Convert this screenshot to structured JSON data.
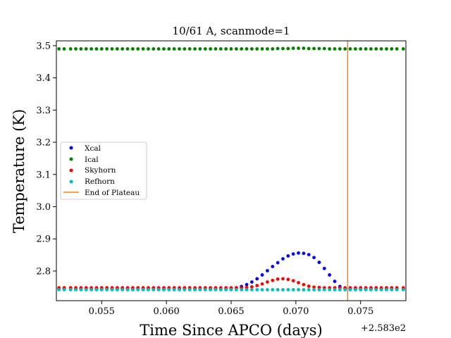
{
  "chart_data": {
    "type": "scatter",
    "title": "10/61 A, scanmode=1",
    "xlabel": "Time Since APCO (days)",
    "ylabel": "Temperature (K)",
    "x_offset_label": "+2.583e2",
    "xlim": [
      258.3515,
      258.3785
    ],
    "ylim": [
      2.708,
      3.515
    ],
    "xticks": [
      0.055,
      0.06,
      0.065,
      0.07,
      0.075
    ],
    "xtick_labels": [
      "0.055",
      "0.060",
      "0.065",
      "0.070",
      "0.075"
    ],
    "yticks": [
      2.8,
      2.9,
      3.0,
      3.1,
      3.2,
      3.3,
      3.4,
      3.5
    ],
    "ytick_labels": [
      "2.8",
      "2.9",
      "3.0",
      "3.1",
      "3.2",
      "3.3",
      "3.4",
      "3.5"
    ],
    "legend_position": "center-left",
    "series": [
      {
        "name": "Xcal",
        "color": "#0000ff",
        "x": [
          258.3517,
          258.3521,
          258.3526,
          258.353,
          258.3534,
          258.3538,
          258.3542,
          258.3546,
          258.355,
          258.3554,
          258.3558,
          258.3562,
          258.3566,
          258.357,
          258.3574,
          258.3578,
          258.3582,
          258.3586,
          258.359,
          258.3594,
          258.3598,
          258.3602,
          258.3606,
          258.361,
          258.3614,
          258.3618,
          258.3622,
          258.3626,
          258.363,
          258.3634,
          258.3638,
          258.3642,
          258.3646,
          258.365,
          258.3654,
          258.3658,
          258.3662,
          258.3666,
          258.367,
          258.3674,
          258.3678,
          258.3682,
          258.3686,
          258.369,
          258.3694,
          258.3698,
          258.3702,
          258.3706,
          258.371,
          258.3714,
          258.3718,
          258.3722,
          258.3726,
          258.373,
          258.3734,
          258.3738,
          258.3742,
          258.3746,
          258.375,
          258.3754,
          258.3758,
          258.3762,
          258.3766,
          258.377,
          258.3774,
          258.3778,
          258.3783
        ],
        "y": [
          2.745,
          2.745,
          2.745,
          2.745,
          2.745,
          2.745,
          2.745,
          2.745,
          2.745,
          2.745,
          2.745,
          2.745,
          2.745,
          2.745,
          2.745,
          2.745,
          2.745,
          2.745,
          2.745,
          2.745,
          2.745,
          2.745,
          2.745,
          2.745,
          2.745,
          2.745,
          2.745,
          2.745,
          2.745,
          2.745,
          2.745,
          2.745,
          2.745,
          2.746,
          2.748,
          2.752,
          2.758,
          2.766,
          2.776,
          2.788,
          2.801,
          2.814,
          2.826,
          2.838,
          2.847,
          2.853,
          2.856,
          2.855,
          2.851,
          2.842,
          2.827,
          2.808,
          2.788,
          2.768,
          2.752,
          2.746,
          2.745,
          2.745,
          2.745,
          2.745,
          2.745,
          2.745,
          2.745,
          2.745,
          2.745,
          2.745,
          2.745
        ]
      },
      {
        "name": "Ical",
        "color": "#008000",
        "x": [
          258.3517,
          258.3521,
          258.3526,
          258.353,
          258.3534,
          258.3538,
          258.3542,
          258.3546,
          258.355,
          258.3554,
          258.3558,
          258.3562,
          258.3566,
          258.357,
          258.3574,
          258.3578,
          258.3582,
          258.3586,
          258.359,
          258.3594,
          258.3598,
          258.3602,
          258.3606,
          258.361,
          258.3614,
          258.3618,
          258.3622,
          258.3626,
          258.363,
          258.3634,
          258.3638,
          258.3642,
          258.3646,
          258.365,
          258.3654,
          258.3658,
          258.3662,
          258.3666,
          258.367,
          258.3674,
          258.3678,
          258.3682,
          258.3686,
          258.369,
          258.3694,
          258.3698,
          258.3702,
          258.3706,
          258.371,
          258.3714,
          258.3718,
          258.3722,
          258.3726,
          258.373,
          258.3734,
          258.3738,
          258.3742,
          258.3746,
          258.375,
          258.3754,
          258.3758,
          258.3762,
          258.3766,
          258.377,
          258.3774,
          258.3778,
          258.3783
        ],
        "y": [
          3.49,
          3.49,
          3.49,
          3.49,
          3.49,
          3.49,
          3.49,
          3.49,
          3.49,
          3.49,
          3.49,
          3.49,
          3.49,
          3.49,
          3.49,
          3.49,
          3.49,
          3.49,
          3.49,
          3.49,
          3.49,
          3.49,
          3.49,
          3.49,
          3.49,
          3.49,
          3.49,
          3.49,
          3.49,
          3.49,
          3.49,
          3.49,
          3.49,
          3.49,
          3.49,
          3.49,
          3.49,
          3.49,
          3.49,
          3.49,
          3.49,
          3.49,
          3.491,
          3.491,
          3.491,
          3.492,
          3.492,
          3.492,
          3.491,
          3.491,
          3.491,
          3.491,
          3.49,
          3.49,
          3.49,
          3.49,
          3.49,
          3.49,
          3.49,
          3.49,
          3.49,
          3.49,
          3.49,
          3.49,
          3.49,
          3.49,
          3.49
        ]
      },
      {
        "name": "Skyhorn",
        "color": "#ff0000",
        "x": [
          258.3517,
          258.3521,
          258.3526,
          258.353,
          258.3534,
          258.3538,
          258.3542,
          258.3546,
          258.355,
          258.3554,
          258.3558,
          258.3562,
          258.3566,
          258.357,
          258.3574,
          258.3578,
          258.3582,
          258.3586,
          258.359,
          258.3594,
          258.3598,
          258.3602,
          258.3606,
          258.361,
          258.3614,
          258.3618,
          258.3622,
          258.3626,
          258.363,
          258.3634,
          258.3638,
          258.3642,
          258.3646,
          258.365,
          258.3654,
          258.3658,
          258.3662,
          258.3666,
          258.367,
          258.3674,
          258.3678,
          258.3682,
          258.3686,
          258.369,
          258.3694,
          258.3698,
          258.3702,
          258.3706,
          258.371,
          258.3714,
          258.3718,
          258.3722,
          258.3726,
          258.373,
          258.3734,
          258.3738,
          258.3742,
          258.3746,
          258.375,
          258.3754,
          258.3758,
          258.3762,
          258.3766,
          258.377,
          258.3774,
          258.3778,
          258.3783
        ],
        "y": [
          2.748,
          2.748,
          2.748,
          2.748,
          2.748,
          2.748,
          2.748,
          2.748,
          2.748,
          2.748,
          2.748,
          2.748,
          2.748,
          2.748,
          2.748,
          2.748,
          2.748,
          2.748,
          2.748,
          2.748,
          2.748,
          2.748,
          2.748,
          2.748,
          2.748,
          2.748,
          2.748,
          2.748,
          2.748,
          2.748,
          2.748,
          2.748,
          2.748,
          2.748,
          2.748,
          2.748,
          2.749,
          2.751,
          2.755,
          2.76,
          2.766,
          2.771,
          2.775,
          2.776,
          2.774,
          2.77,
          2.764,
          2.758,
          2.753,
          2.75,
          2.749,
          2.748,
          2.748,
          2.748,
          2.748,
          2.748,
          2.748,
          2.748,
          2.748,
          2.748,
          2.748,
          2.748,
          2.748,
          2.748,
          2.748,
          2.748,
          2.748
        ]
      },
      {
        "name": "Refhorn",
        "color": "#00bfbf",
        "x": [
          258.3517,
          258.3521,
          258.3526,
          258.353,
          258.3534,
          258.3538,
          258.3542,
          258.3546,
          258.355,
          258.3554,
          258.3558,
          258.3562,
          258.3566,
          258.357,
          258.3574,
          258.3578,
          258.3582,
          258.3586,
          258.359,
          258.3594,
          258.3598,
          258.3602,
          258.3606,
          258.361,
          258.3614,
          258.3618,
          258.3622,
          258.3626,
          258.363,
          258.3634,
          258.3638,
          258.3642,
          258.3646,
          258.365,
          258.3654,
          258.3658,
          258.3662,
          258.3666,
          258.367,
          258.3674,
          258.3678,
          258.3682,
          258.3686,
          258.369,
          258.3694,
          258.3698,
          258.3702,
          258.3706,
          258.371,
          258.3714,
          258.3718,
          258.3722,
          258.3726,
          258.373,
          258.3734,
          258.3738,
          258.3742,
          258.3746,
          258.375,
          258.3754,
          258.3758,
          258.3762,
          258.3766,
          258.377,
          258.3774,
          258.3778,
          258.3783
        ],
        "y": [
          2.742,
          2.742,
          2.742,
          2.742,
          2.742,
          2.742,
          2.742,
          2.742,
          2.742,
          2.742,
          2.742,
          2.742,
          2.742,
          2.742,
          2.742,
          2.742,
          2.742,
          2.742,
          2.742,
          2.742,
          2.742,
          2.742,
          2.742,
          2.742,
          2.742,
          2.742,
          2.742,
          2.742,
          2.742,
          2.742,
          2.742,
          2.742,
          2.742,
          2.742,
          2.742,
          2.742,
          2.742,
          2.742,
          2.742,
          2.742,
          2.742,
          2.742,
          2.742,
          2.742,
          2.742,
          2.742,
          2.742,
          2.742,
          2.742,
          2.742,
          2.742,
          2.742,
          2.742,
          2.742,
          2.742,
          2.742,
          2.742,
          2.742,
          2.742,
          2.742,
          2.742,
          2.742,
          2.742,
          2.742,
          2.742,
          2.742,
          2.742
        ]
      }
    ],
    "vlines": [
      {
        "name": "End of Plateau",
        "x": 258.374,
        "color": "#ff7f0e"
      }
    ]
  }
}
